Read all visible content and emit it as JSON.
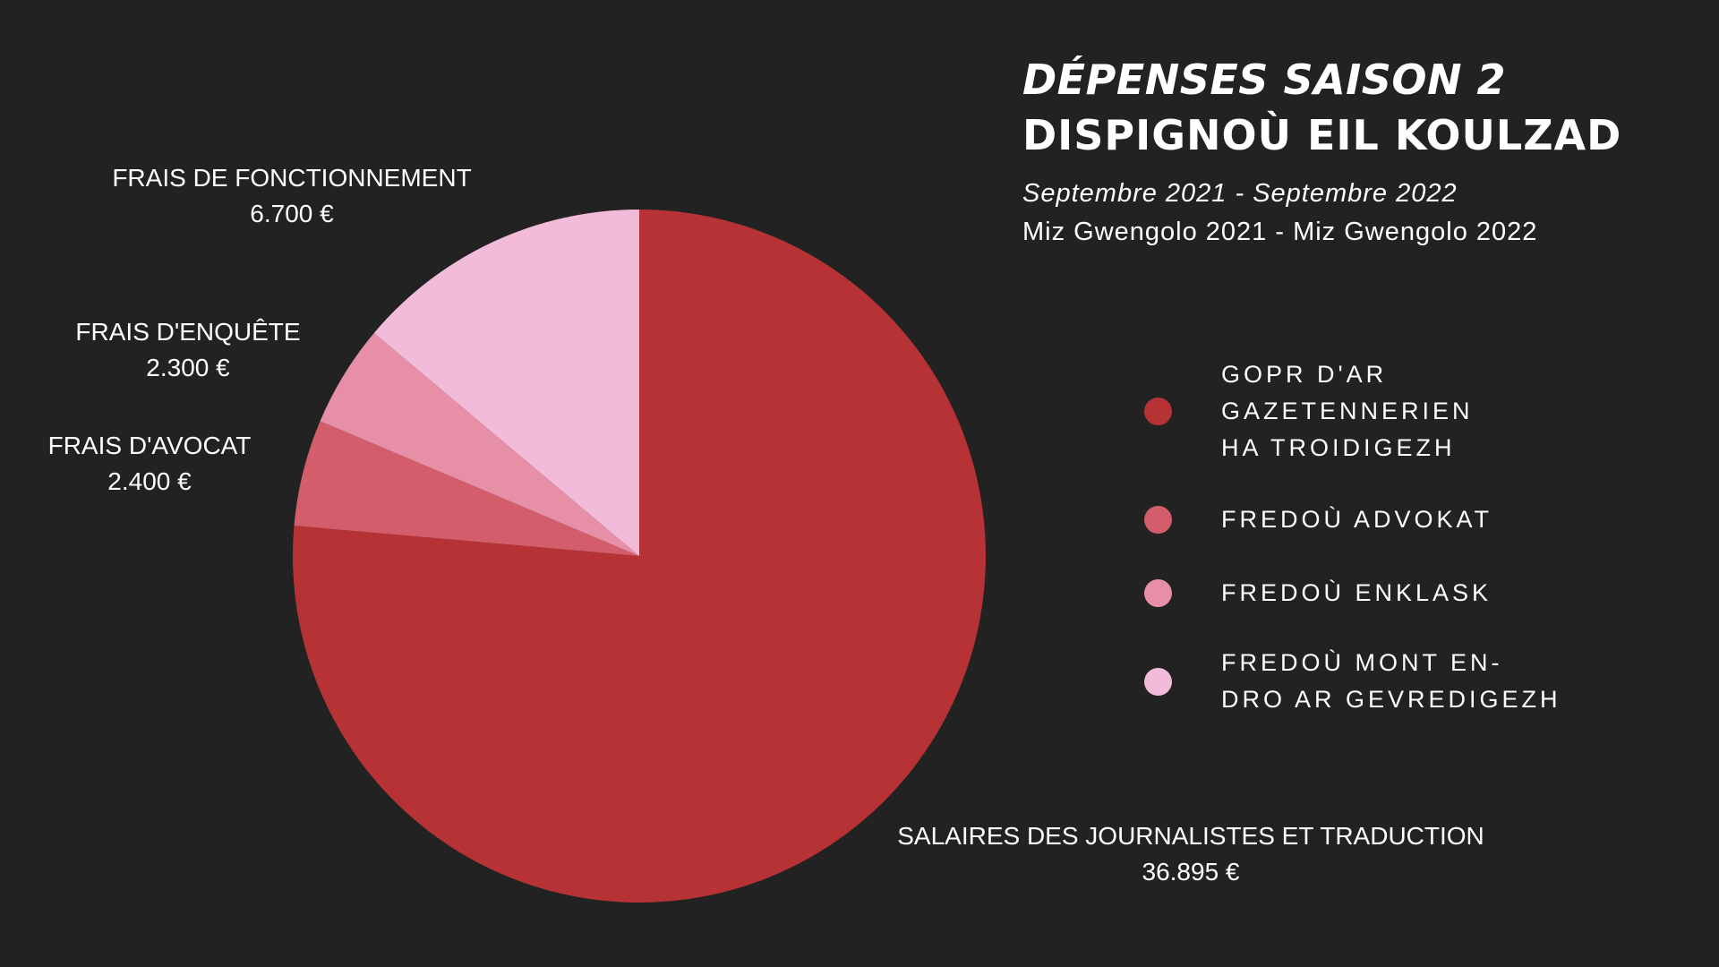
{
  "header": {
    "title_fr": "DÉPENSES SAISON 2",
    "title_br": "DISPIGNOÙ EIL KOULZAD",
    "period_fr": "Septembre 2021 - Septembre 2022",
    "period_br": "Miz Gwengolo 2021 - Miz Gwengolo 2022"
  },
  "legend": {
    "items": [
      {
        "lines": [
          "GOPR D'AR",
          "GAZETENNERIEN",
          "HA TROIDIGEZH"
        ],
        "color": "#b73234"
      },
      {
        "lines": [
          "FREDOÙ ADVOKAT"
        ],
        "color": "#d45d6b"
      },
      {
        "lines": [
          "FREDOÙ ENKLASK"
        ],
        "color": "#e88fa8"
      },
      {
        "lines": [
          "FREDOÙ MONT EN-",
          "DRO AR GEVREDIGEZH"
        ],
        "color": "#f2bbd9"
      }
    ]
  },
  "chart_data": {
    "type": "pie",
    "title": "DÉPENSES SAISON 2",
    "slices": [
      {
        "label": "SALAIRES DES JOURNALISTES ET TRADUCTION",
        "value_text": "36.895 €",
        "value": 36895,
        "color": "#b73234"
      },
      {
        "label": "FRAIS D'AVOCAT",
        "value_text": "2.400 €",
        "value": 2400,
        "color": "#d45d6b"
      },
      {
        "label": "FRAIS D'ENQUÊTE",
        "value_text": "2.300 €",
        "value": 2300,
        "color": "#e88fa8"
      },
      {
        "label": "FRAIS DE FONCTIONNEMENT",
        "value_text": "6.700 €",
        "value": 6700,
        "color": "#f2bbd9"
      }
    ]
  }
}
